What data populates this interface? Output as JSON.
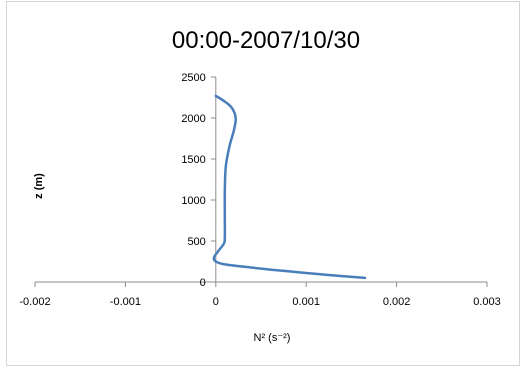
{
  "chart_data": {
    "type": "line",
    "title": "00:00-2007/10/30",
    "xlabel": "N² (s⁻²)",
    "ylabel": "z (m)",
    "xlim": [
      -0.002,
      0.003
    ],
    "ylim": [
      0,
      2500
    ],
    "x_ticks": [
      "-0.002",
      "-0.001",
      "0",
      "0.001",
      "0.002",
      "0.003"
    ],
    "y_ticks": [
      "0",
      "500",
      "1000",
      "1500",
      "2000",
      "2500"
    ],
    "grid": false,
    "legend": "none",
    "series": [
      {
        "color": "#4a7ebb",
        "points": [
          [
            0.00165,
            50
          ],
          [
            0.0012,
            90
          ],
          [
            0.0008,
            130
          ],
          [
            0.0004,
            175
          ],
          [
            0.0001,
            215
          ],
          [
            0.0,
            250
          ],
          [
            -2e-05,
            300
          ],
          [
            3e-05,
            380
          ],
          [
            9e-05,
            470
          ],
          [
            0.0001,
            540
          ],
          [
            0.0001,
            800
          ],
          [
            0.0001,
            1100
          ],
          [
            0.00011,
            1400
          ],
          [
            0.00015,
            1650
          ],
          [
            0.0002,
            1850
          ],
          [
            0.00022,
            2000
          ],
          [
            0.00018,
            2120
          ],
          [
            0.0001,
            2200
          ],
          [
            0.0,
            2270
          ]
        ]
      }
    ]
  }
}
